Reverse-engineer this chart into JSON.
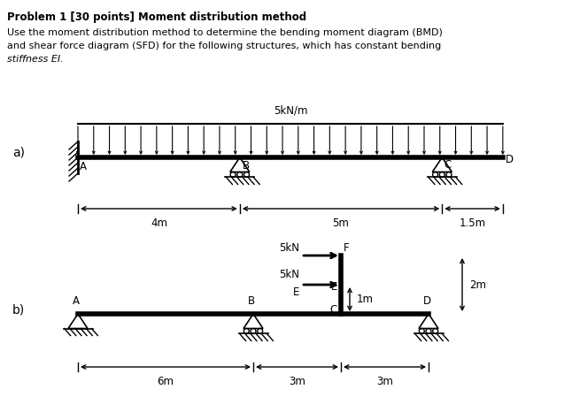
{
  "title": "Problem 1 [30 points] Moment distribution method",
  "body_text_line1": "Use the moment distribution method to determine the bending moment diagram (BMD)",
  "body_text_line2": "and shear force diagram (SFD) for the following structures, which has constant bending",
  "body_text_line3": "stiffness EI.",
  "background_color": "#ffffff",
  "text_color": "#000000",
  "label_a": "a)",
  "label_b": "b)",
  "load_label_a": "5kN/m",
  "dim_a1": "4m",
  "dim_a2": "5m",
  "dim_a3": "1.5m",
  "dim_b1": "6m",
  "dim_b2": "3m",
  "dim_b3": "3m",
  "force_b1_label": "5kN",
  "force_b2_label": "5kN",
  "force_b1_sublabel": "E",
  "dim_b_vert": "1m",
  "dim_b_col": "2m",
  "node_A_a": "A",
  "node_B_a": "B",
  "node_C_a": "C",
  "node_D_a": "D",
  "node_A_b": "A",
  "node_B_b": "B",
  "node_C_b": "C",
  "node_D_b": "D",
  "node_E_b": "E",
  "node_F_b": "F"
}
